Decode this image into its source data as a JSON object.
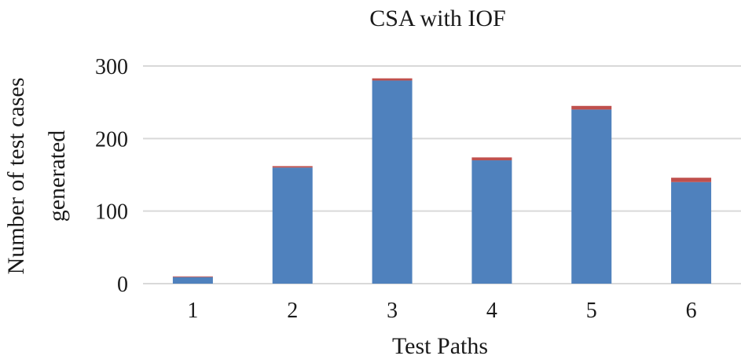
{
  "chart_data": {
    "type": "bar",
    "stacked": true,
    "title": "CSA with IOF",
    "xlabel": "Test Paths",
    "ylabel_lines": [
      "Number of test cases",
      "generated"
    ],
    "categories": [
      "1",
      "2",
      "3",
      "4",
      "5",
      "6"
    ],
    "series": [
      {
        "values": [
          9,
          160,
          280,
          170,
          240,
          140
        ],
        "color": "#4f81bd"
      },
      {
        "values": [
          1,
          2,
          3,
          4,
          5,
          6
        ],
        "color": "#c0504d"
      }
    ],
    "ylim": [
      0,
      300
    ],
    "yticks": [
      0,
      100,
      200,
      300
    ],
    "grid": true,
    "legend": "none"
  }
}
